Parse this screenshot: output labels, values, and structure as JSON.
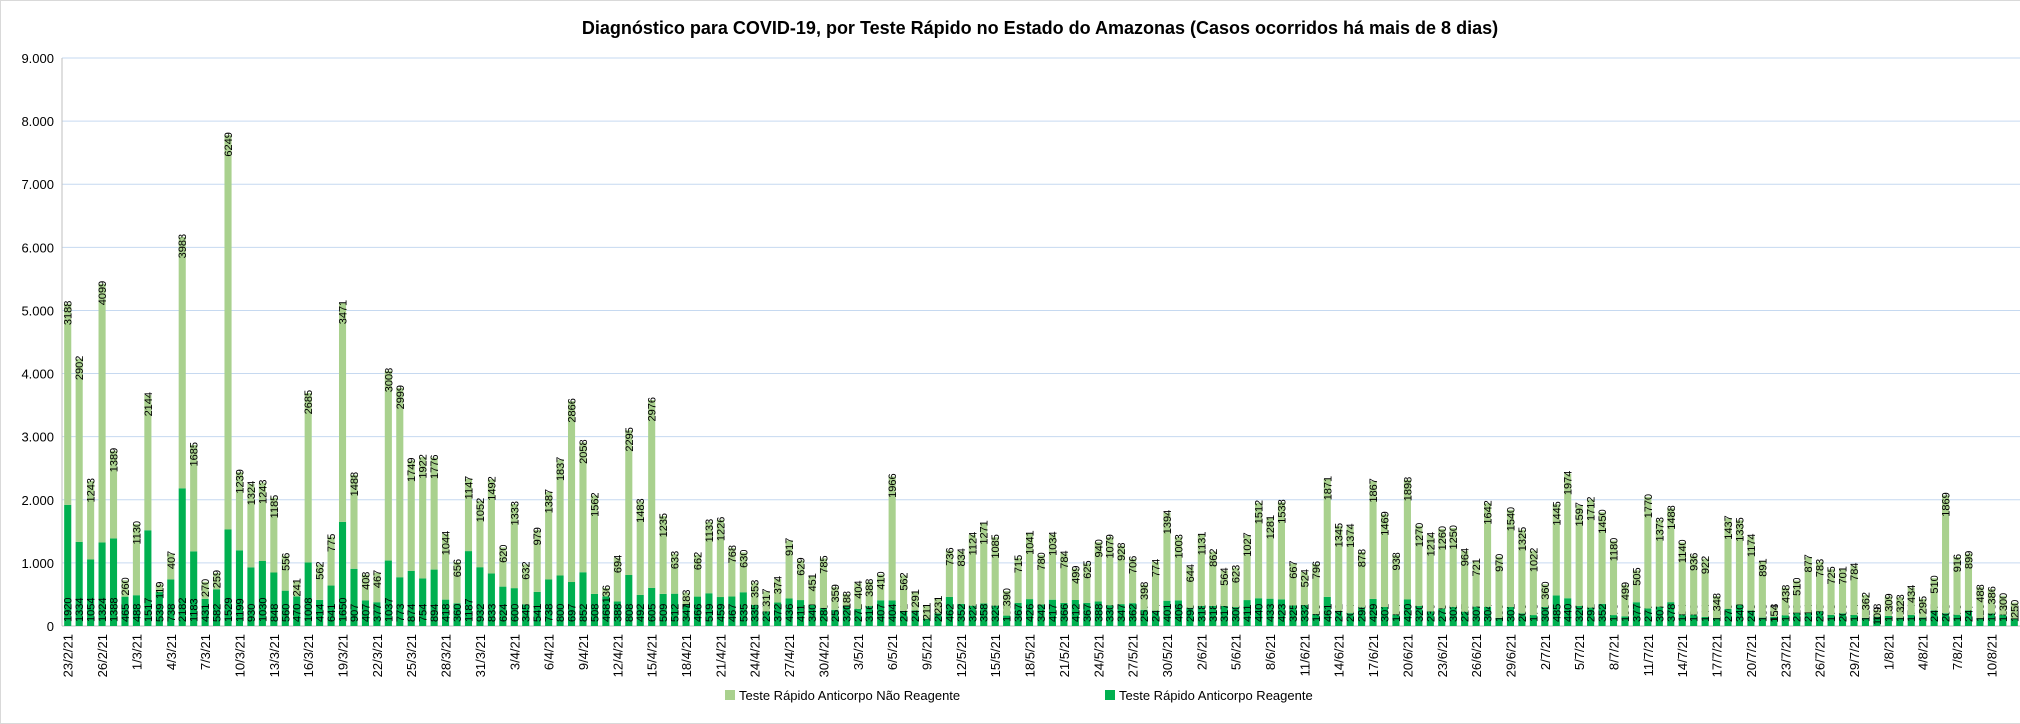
{
  "chart_data": {
    "type": "stacked_bar",
    "title": "Diagnóstico para COVID-19, por  Teste Rápido no Estado do Amazonas (Casos ocorridos há mais de 8 dias)",
    "categories": [
      "23/2/21",
      null,
      null,
      "26/2/21",
      null,
      null,
      "1/3/21",
      null,
      null,
      "4/3/21",
      null,
      null,
      "7/3/21",
      null,
      null,
      "10/3/21",
      null,
      null,
      "13/3/21",
      null,
      null,
      "16/3/21",
      null,
      null,
      "19/3/21",
      null,
      null,
      "22/3/21",
      null,
      null,
      "25/3/21",
      null,
      null,
      "28/3/21",
      null,
      null,
      "31/3/21",
      null,
      null,
      "3/4/21",
      null,
      null,
      "6/4/21",
      null,
      null,
      "9/4/21",
      null,
      null,
      "12/4/21",
      null,
      null,
      "15/4/21",
      null,
      null,
      "18/4/21",
      null,
      null,
      "21/4/21",
      null,
      null,
      "24/4/21",
      null,
      null,
      "27/4/21",
      null,
      null,
      "30/4/21",
      null,
      null,
      "3/5/21",
      null,
      null,
      "6/5/21",
      null,
      null,
      "9/5/21",
      null,
      null,
      "12/5/21",
      null,
      null,
      "15/5/21",
      null,
      null,
      "18/5/21",
      null,
      null,
      "21/5/21",
      null,
      null,
      "24/5/21",
      null,
      null,
      "27/5/21",
      null,
      null,
      "30/5/21",
      null,
      null,
      "2/6/21",
      null,
      null,
      "5/6/21",
      null,
      null,
      "8/6/21",
      null,
      null,
      "11/6/21",
      null,
      null,
      "14/6/21",
      null,
      null,
      "17/6/21",
      null,
      null,
      "20/6/21",
      null,
      null,
      "23/6/21",
      null,
      null,
      "26/6/21",
      null,
      null,
      "29/6/21",
      null,
      null,
      "2/7/21",
      null,
      null,
      "5/7/21",
      null,
      null,
      "8/7/21",
      null,
      null,
      "11/7/21",
      null,
      null,
      "14/7/21",
      null,
      null,
      "17/7/21",
      null,
      null,
      "20/7/21",
      null,
      null,
      "23/7/21",
      null,
      null,
      "26/7/21",
      null,
      null,
      "29/7/21",
      null,
      null,
      "1/8/21",
      null,
      null,
      "4/8/21",
      null,
      null,
      "7/8/21",
      null,
      null,
      "10/8/21",
      null,
      null
    ],
    "series": [
      {
        "name": "Teste Rápido Anticorpo Reagente",
        "color": "#00b050",
        "values": [
          1920,
          1334,
          1054,
          1324,
          1388,
          465,
          488,
          1517,
          539,
          738,
          2182,
          1183,
          431,
          582,
          1529,
          1199,
          930,
          1030,
          848,
          560,
          470,
          1008,
          414,
          641,
          1650,
          907,
          407,
          377,
          1037,
          773,
          874,
          754,
          894,
          418,
          360,
          1187,
          932,
          833,
          624,
          600,
          345,
          541,
          738,
          800,
          697,
          852,
          508,
          468,
          388,
          808,
          492,
          605,
          509,
          512,
          347,
          466,
          519,
          459,
          467,
          535,
          335,
          231,
          372,
          436,
          411,
          340,
          286,
          257,
          320,
          272,
          316,
          407,
          404,
          241,
          246,
          111,
          202,
          462,
          352,
          322,
          358,
          323,
          165,
          367,
          426,
          342,
          417,
          366,
          412,
          367,
          388,
          330,
          347,
          362,
          257,
          244,
          401,
          406,
          290,
          318,
          318,
          317,
          300,
          411,
          440,
          433,
          423,
          325,
          332,
          189,
          461,
          242,
          204,
          296,
          429,
          301,
          184,
          420,
          320,
          230,
          279,
          303,
          227,
          307,
          304,
          130,
          301,
          200,
          173,
          300,
          485,
          440,
          320,
          292,
          352,
          173,
          153,
          377,
          277,
          307,
          378,
          184,
          180,
          144,
          127,
          270,
          340,
          245,
          133,
          143,
          170,
          210,
          214,
          235,
          175,
          200,
          174,
          129,
          148,
          160,
          132,
          174,
          134,
          247,
          203,
          179,
          247,
          126,
          198,
          180,
          120
        ]
      },
      {
        "name": "Teste Rápido Anticorpo Não Reagente",
        "color": "#a9d18e",
        "values": [
          3188,
          2902,
          1243,
          4099,
          1389,
          260,
          1130,
          2144,
          119,
          407,
          3983,
          1685,
          270,
          259,
          6249,
          1239,
          1324,
          1243,
          1185,
          556,
          241,
          2685,
          562,
          775,
          3471,
          1488,
          408,
          467,
          3008,
          2999,
          1749,
          1922,
          1776,
          1044,
          656,
          1147,
          1052,
          1492,
          620,
          1333,
          632,
          979,
          1387,
          1837,
          2866,
          2058,
          1562,
          136,
          694,
          2295,
          1483,
          2976,
          1235,
          633,
          183,
          662,
          1133,
          1226,
          768,
          630,
          353,
          317,
          374,
          917,
          629,
          451,
          785,
          359,
          188,
          404,
          388,
          410,
          1966,
          562,
          291,
          211,
          231,
          736,
          834,
          1124,
          1271,
          1085,
          390,
          715,
          1041,
          780,
          1034,
          784,
          499,
          625,
          940,
          1079,
          928,
          706,
          398,
          774,
          1394,
          1003,
          644,
          1131,
          862,
          564,
          623,
          1027,
          1512,
          1281,
          1538,
          667,
          524,
          796,
          1871,
          1345,
          1374,
          878,
          1867,
          1469,
          938,
          1898,
          1270,
          1214,
          1260,
          1250,
          964,
          721,
          1642,
          970,
          1540,
          1325,
          1022,
          360,
          1445,
          1974,
          1597,
          1712,
          1450,
          1180,
          499,
          505,
          1770,
          1373,
          1488,
          1140,
          936,
          922,
          348,
          1437,
          1335,
          1174,
          891,
          154,
          438,
          510,
          877,
          783,
          725,
          701,
          784,
          362,
          109,
          309,
          323,
          434,
          295,
          510,
          1869,
          916,
          899,
          488,
          386,
          300,
          250
        ]
      }
    ],
    "ylim": [
      0,
      9000
    ],
    "yticks": [
      0,
      {
        "value": 1000,
        "label": "1.000"
      },
      {
        "value": 2000,
        "label": "2.000"
      },
      {
        "value": 3000,
        "label": "3.000"
      },
      {
        "value": 4000,
        "label": "4.000"
      },
      {
        "value": 5000,
        "label": "5.000"
      },
      {
        "value": 6000,
        "label": "6.000"
      },
      {
        "value": 7000,
        "label": "7.000"
      },
      {
        "value": 8000,
        "label": "8.000"
      },
      {
        "value": 9000,
        "label": "9.000"
      }
    ],
    "grid": true,
    "legend": "bottom"
  }
}
